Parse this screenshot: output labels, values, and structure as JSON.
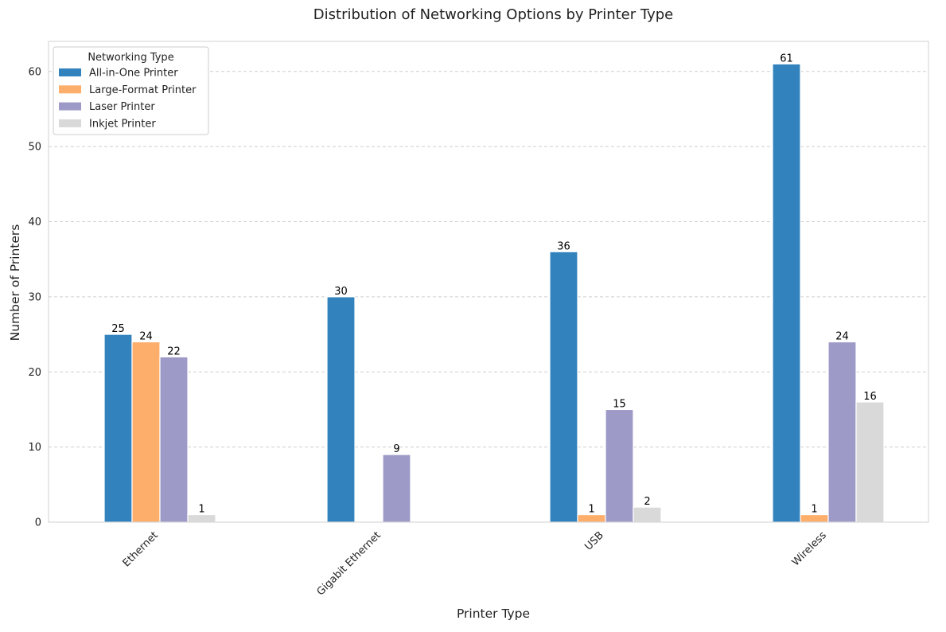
{
  "chart_data": {
    "type": "bar",
    "title": "Distribution of Networking Options by Printer Type",
    "xlabel": "Printer Type",
    "ylabel": "Number of Printers",
    "categories": [
      "Ethernet",
      "Gigabit Ethernet",
      "USB",
      "Wireless"
    ],
    "series": [
      {
        "name": "All-in-One Printer",
        "color": "#3182bd",
        "values": [
          25,
          30,
          36,
          61
        ]
      },
      {
        "name": "Large-Format Printer",
        "color": "#fdae6b",
        "values": [
          24,
          0,
          1,
          1
        ]
      },
      {
        "name": "Laser Printer",
        "color": "#9e9ac8",
        "values": [
          22,
          9,
          15,
          24
        ]
      },
      {
        "name": "Inkjet Printer",
        "color": "#d9d9d9",
        "values": [
          1,
          0,
          2,
          16
        ]
      }
    ],
    "ylim": [
      0,
      64
    ],
    "yticks": [
      0,
      10,
      20,
      30,
      40,
      50,
      60
    ],
    "grid": true,
    "legend": {
      "title": "Networking Type",
      "position": "top-left"
    }
  }
}
